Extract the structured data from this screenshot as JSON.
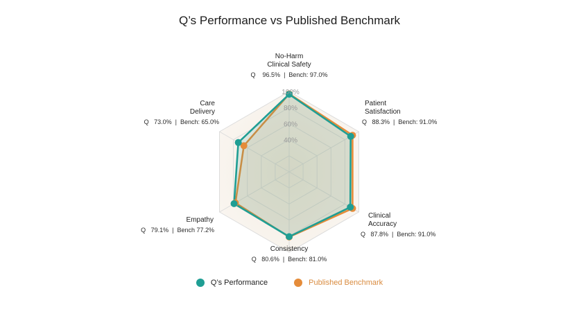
{
  "title": "Q’s Performance vs Published Benchmark",
  "colors": {
    "q": "#1f9e94",
    "bench": "#e58c3a",
    "grid": "#dcdcdc",
    "tick": "#9a9a9a"
  },
  "chart_data": {
    "type": "radar",
    "title": "Q’s Performance vs Published Benchmark",
    "range": [
      0,
      100
    ],
    "ticks": [
      "40%",
      "60%",
      "80%",
      "100%"
    ],
    "tick_values": [
      40,
      60,
      80,
      100
    ],
    "axes": [
      {
        "name": [
          "No-Harm",
          "Clinical Safety"
        ],
        "label": "Q    96.5%  |  Bench: 97.0%"
      },
      {
        "name": [
          "Patient",
          "Satisfaction"
        ],
        "label": "Q   88.3%  |  Bench: 91.0%"
      },
      {
        "name": [
          "Clinical",
          "Accuracy"
        ],
        "label": "Q   87.8%  |  Bench: 91.0%"
      },
      {
        "name": [
          "Consistency"
        ],
        "label": "Q   80.6%  |  Bench: 81.0%"
      },
      {
        "name": [
          "Empathy"
        ],
        "label": "Q   79.1%  |  Bench 77.2%"
      },
      {
        "name": [
          "Care",
          "Delivery"
        ],
        "label": "Q   73.0%  |  Bench: 65.0%"
      }
    ],
    "series": [
      {
        "name": "Q’s Performance",
        "color": "#1f9e94",
        "values": [
          96.5,
          88.3,
          87.8,
          80.6,
          79.1,
          73.0
        ]
      },
      {
        "name": "Published Benchmark",
        "color": "#e58c3a",
        "values": [
          97.0,
          91.0,
          91.0,
          81.0,
          77.2,
          65.0
        ]
      }
    ],
    "legend_position": "bottom"
  }
}
